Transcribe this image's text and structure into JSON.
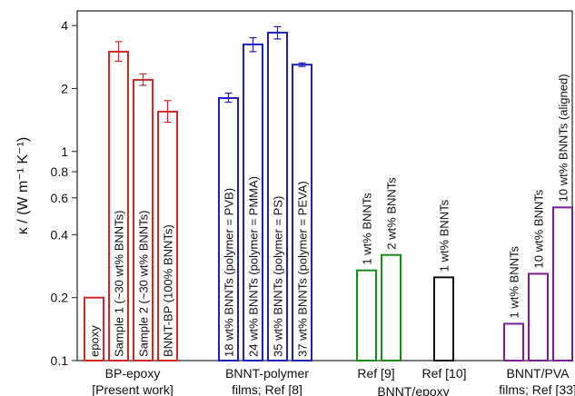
{
  "chart_data": {
    "type": "bar",
    "yscale": "log",
    "ylim": [
      0.1,
      4.7
    ],
    "ylabel": "κ / (W m⁻¹ K⁻¹)",
    "yticks": [
      {
        "value": 0.1,
        "label": "0.1"
      },
      {
        "value": 0.2,
        "label": "0.2"
      },
      {
        "value": 0.4,
        "label": "0.4"
      },
      {
        "value": 0.6,
        "label": "0.6"
      },
      {
        "value": 0.8,
        "label": "0.8"
      },
      {
        "value": 1,
        "label": "1"
      },
      {
        "value": 2,
        "label": "2"
      },
      {
        "value": 4,
        "label": "4"
      }
    ],
    "groups": [
      {
        "lines": [
          "BP-epoxy",
          "[Present work]"
        ],
        "color": "#d62728"
      },
      {
        "lines": [
          "BNNT-polymer",
          "films; Ref [8]"
        ],
        "color": "#1f1fbf"
      },
      {
        "lines": [
          "Ref [9]"
        ],
        "color": "#1a8a1a"
      },
      {
        "lines": [
          "Ref [10]"
        ],
        "color": "#111111"
      },
      {
        "lines": [
          "BNNT/epoxy"
        ],
        "color": "#111111"
      },
      {
        "lines": [
          "BNNT/PVA",
          "films; Ref [33]"
        ],
        "color": "#7a1f8f"
      }
    ],
    "bars": [
      {
        "label": "epoxy",
        "value": 0.2,
        "group": 0,
        "inside": true
      },
      {
        "label": "Sample 1 (~30 wt% BNNTs)",
        "value": 3.0,
        "err": [
          2.7,
          3.35
        ],
        "group": 0,
        "inside": true
      },
      {
        "label": "Sample 2 (~30 wt% BNNTs)",
        "value": 2.2,
        "err": [
          2.07,
          2.35
        ],
        "group": 0,
        "inside": true
      },
      {
        "label": "BNNT-BP (100% BNNTs)",
        "value": 1.55,
        "err": [
          1.38,
          1.75
        ],
        "group": 0,
        "inside": true
      },
      {
        "label": "18 wt% BNNTs (polymer = PVB)",
        "value": 1.8,
        "err": [
          1.72,
          1.9
        ],
        "group": 1,
        "inside": true
      },
      {
        "label": "24 wt% BNNTs (polymer = PMMA)",
        "value": 3.25,
        "err": [
          3.0,
          3.5
        ],
        "group": 1,
        "inside": true
      },
      {
        "label": "35 wt% BNNTs (polymer = PS)",
        "value": 3.7,
        "err": [
          3.45,
          3.95
        ],
        "group": 1,
        "inside": true
      },
      {
        "label": "37 wt% BNNTs (polymer = PEVA)",
        "value": 2.6,
        "err": [
          2.55,
          2.65
        ],
        "group": 1,
        "inside": true
      },
      {
        "label": "1 wt% BNNTs",
        "value": 0.27,
        "group": 2,
        "inside": false
      },
      {
        "label": "2 wt% BNNTs",
        "value": 0.32,
        "group": 2,
        "inside": false
      },
      {
        "label": "1 wt% BNNTs",
        "value": 0.25,
        "group": 3,
        "inside": false
      },
      {
        "label": "1 wt% BNNTs",
        "value": 0.15,
        "group": 5,
        "inside": false
      },
      {
        "label": "10 wt% BNNTs",
        "value": 0.26,
        "group": 5,
        "inside": false
      },
      {
        "label": "10 wt% BNNTs (aligned)",
        "value": 0.54,
        "group": 5,
        "inside": false
      }
    ]
  }
}
